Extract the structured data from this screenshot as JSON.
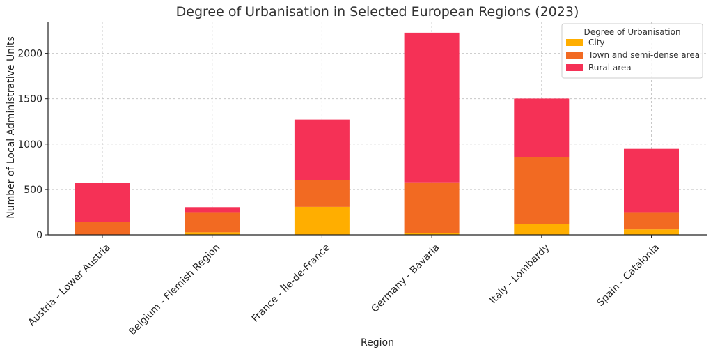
{
  "chart_data": {
    "type": "bar",
    "stacked": true,
    "title": "Degree of Urbanisation in Selected European Regions (2023)",
    "xlabel": "Region",
    "ylabel": "Number of Local Administrative Units",
    "categories": [
      "Austria - Lower Austria",
      "Belgium - Flemish Region",
      "France - Île-de-France",
      "Germany - Bavaria",
      "Italy - Lombardy",
      "Spain - Catalonia"
    ],
    "series": [
      {
        "name": "City",
        "color": "#FFAE00",
        "values": [
          3,
          28,
          308,
          18,
          120,
          60
        ]
      },
      {
        "name": "Town and semi-dense area",
        "color": "#F26A22",
        "values": [
          137,
          222,
          295,
          560,
          737,
          190
        ]
      },
      {
        "name": "Rural area",
        "color": "#F53156",
        "values": [
          433,
          55,
          667,
          1650,
          645,
          697
        ]
      }
    ],
    "ylim": [
      0,
      2350
    ],
    "yticks": [
      0,
      500,
      1000,
      1500,
      2000
    ],
    "grid": true,
    "legend": {
      "title": "Degree of Urbanisation",
      "position": "top-right"
    }
  }
}
